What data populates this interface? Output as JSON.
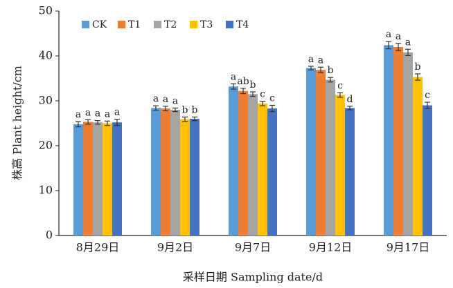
{
  "chart_data": {
    "type": "bar",
    "y_label": "株高 Plant height/cm",
    "x_label": "采样日期 Sampling date/d",
    "categories": [
      "8月29日",
      "9月2日",
      "9月7日",
      "9月12日",
      "9月17日"
    ],
    "ylim": [
      0,
      50
    ],
    "yticks": [
      0,
      10,
      20,
      30,
      40,
      50
    ],
    "grid": false,
    "legend": "top",
    "series": [
      {
        "name": "CK",
        "color": "#5b9bd5",
        "values": [
          24.8,
          28.4,
          33.2,
          37.3,
          42.4
        ],
        "errors": [
          0.6,
          0.5,
          0.6,
          0.4,
          0.8
        ],
        "letters": [
          "a",
          "a",
          "a",
          "a",
          "a"
        ]
      },
      {
        "name": "T1",
        "color": "#ed7d31",
        "values": [
          25.3,
          28.3,
          32.2,
          36.9,
          42.0
        ],
        "errors": [
          0.5,
          0.5,
          0.6,
          0.6,
          0.8
        ],
        "letters": [
          "a",
          "a",
          "ab",
          "a",
          "a"
        ]
      },
      {
        "name": "T2",
        "color": "#a5a5a5",
        "values": [
          25.2,
          28.0,
          31.5,
          34.7,
          40.8
        ],
        "errors": [
          0.4,
          0.4,
          0.5,
          0.5,
          0.7
        ],
        "letters": [
          "a",
          "a",
          "b",
          "b",
          "a"
        ]
      },
      {
        "name": "T3",
        "color": "#ffc000",
        "values": [
          25.0,
          25.9,
          29.4,
          31.3,
          35.3
        ],
        "errors": [
          0.5,
          0.5,
          0.5,
          0.5,
          0.7
        ],
        "letters": [
          "a",
          "b",
          "c",
          "c",
          "b"
        ]
      },
      {
        "name": "T4",
        "color": "#4472c4",
        "values": [
          25.2,
          26.0,
          28.3,
          28.4,
          29.0
        ],
        "errors": [
          0.7,
          0.4,
          0.7,
          0.4,
          0.7
        ],
        "letters": [
          "a",
          "b",
          "c",
          "d",
          "c"
        ]
      }
    ]
  }
}
